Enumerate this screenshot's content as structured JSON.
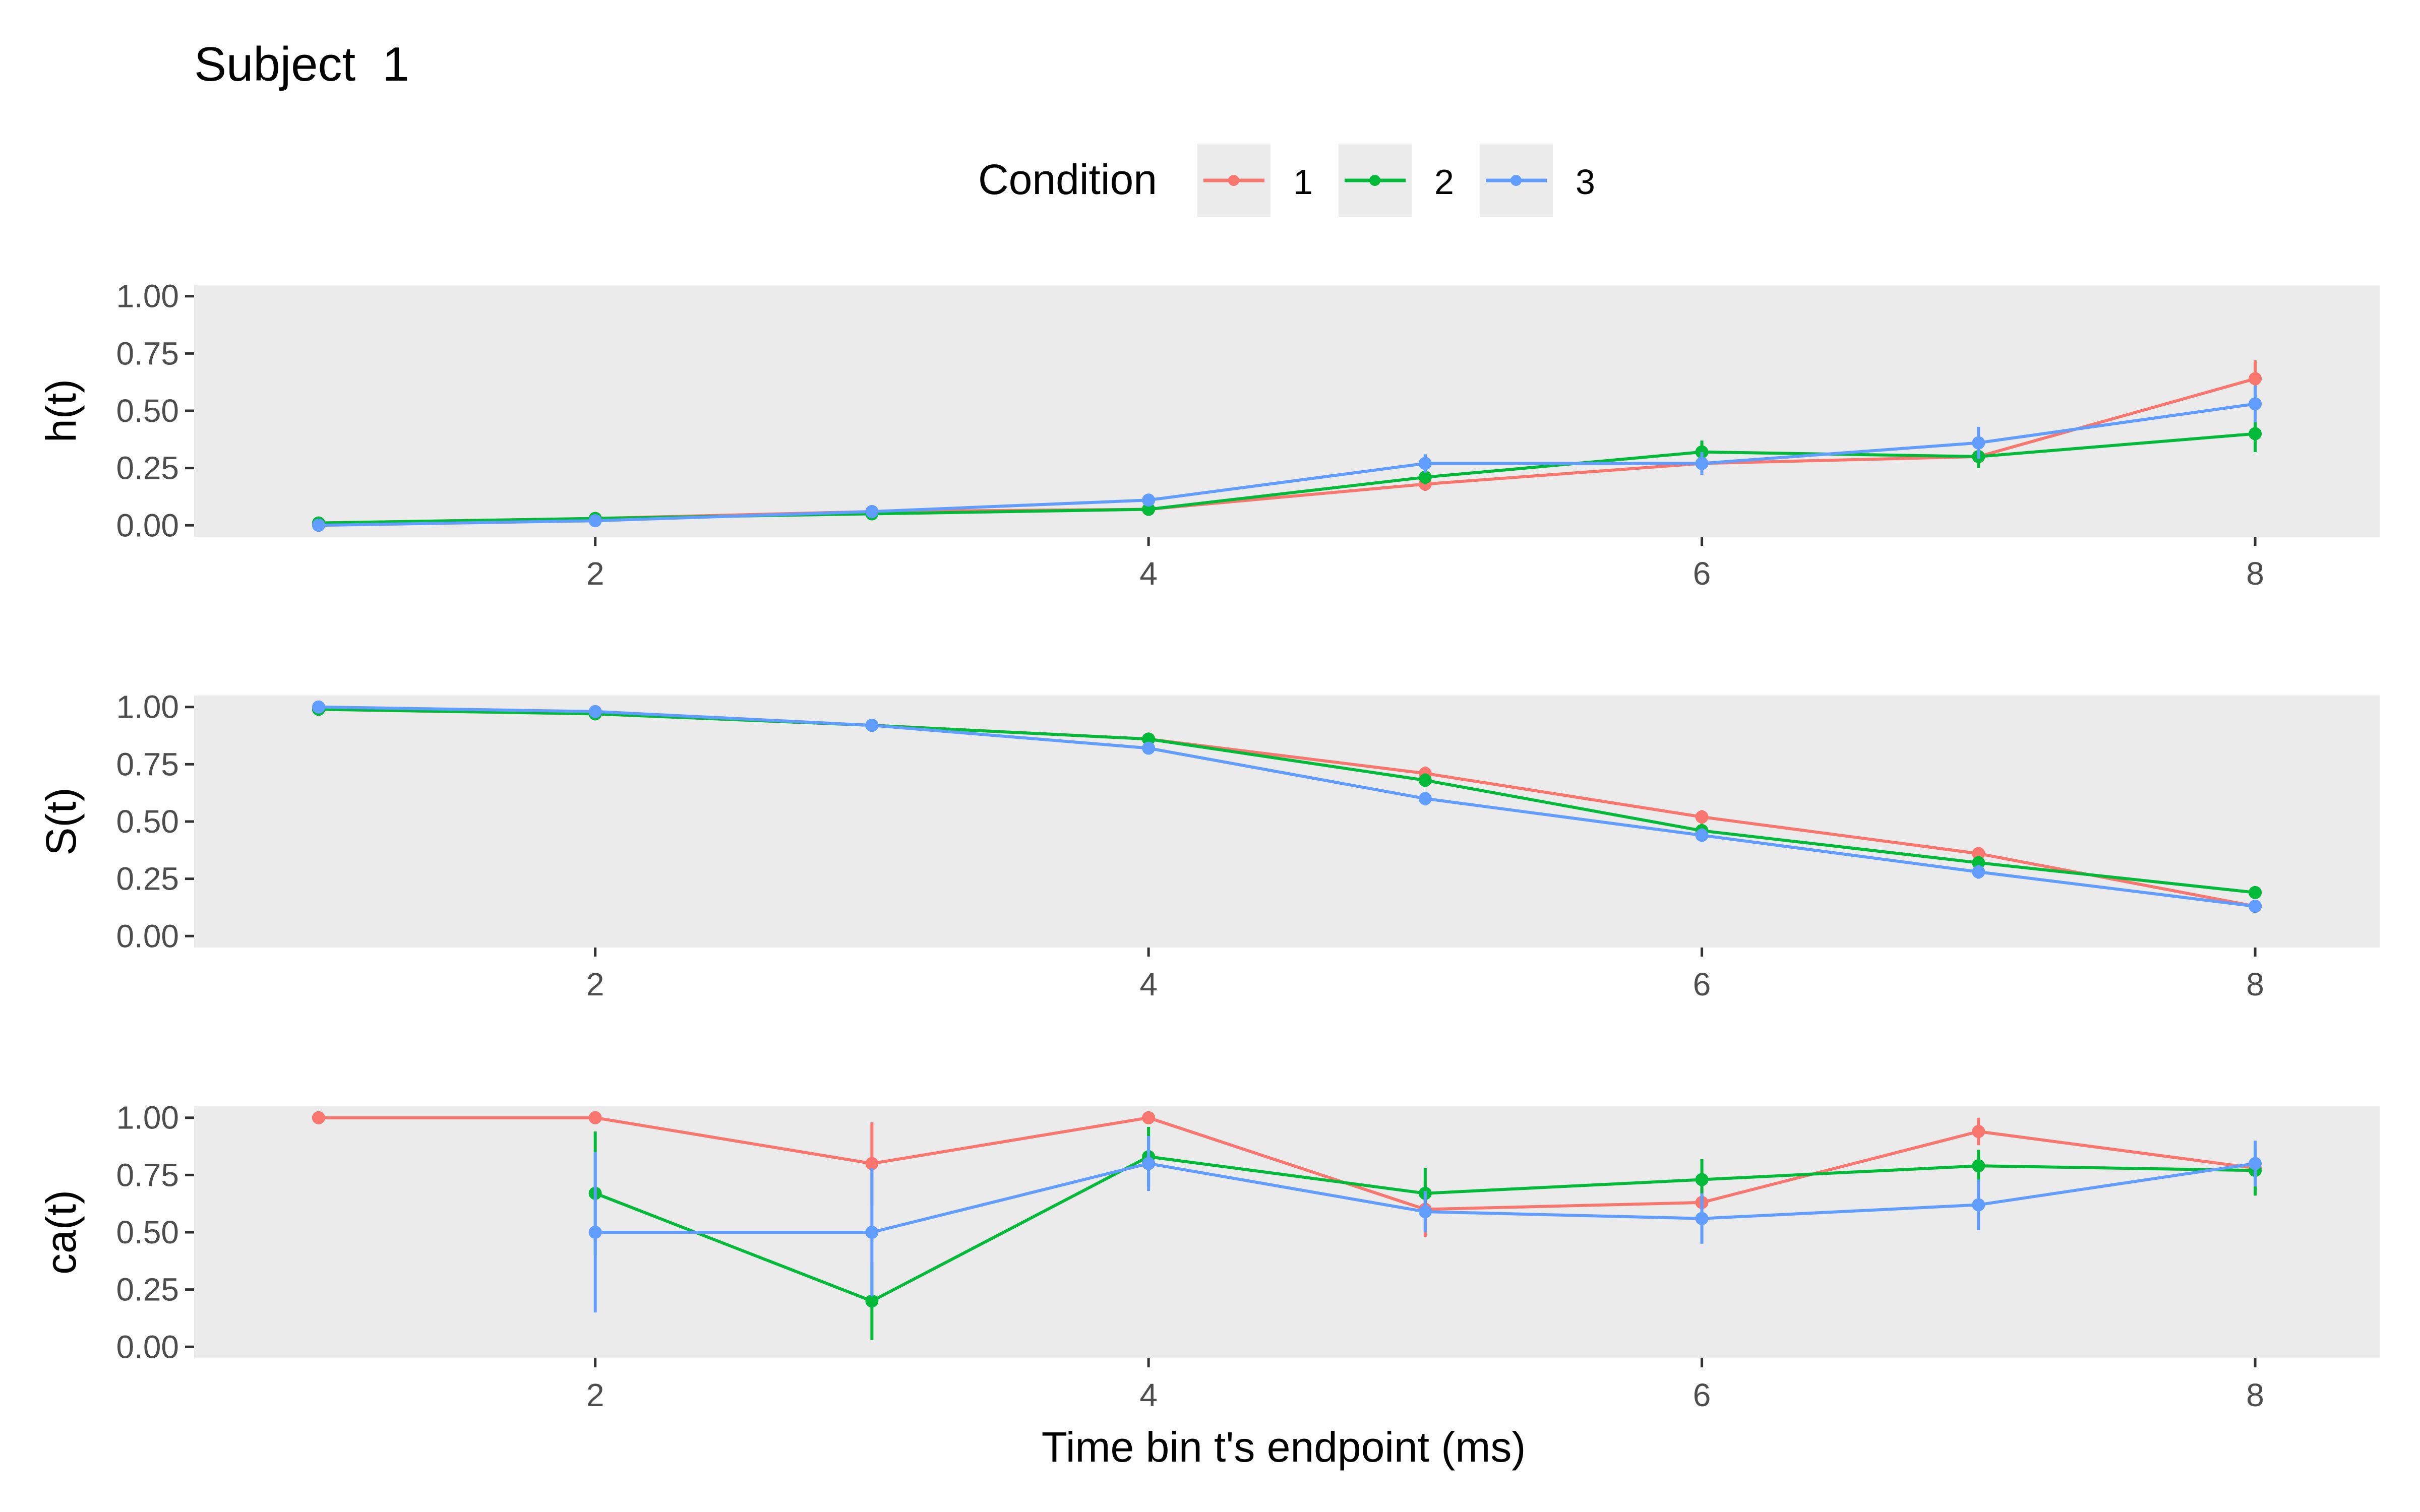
{
  "title": "Subject  1",
  "legend": {
    "title": "Condition",
    "position": "top",
    "items": [
      {
        "label": "1",
        "color": "#F8766D"
      },
      {
        "label": "2",
        "color": "#00BA38"
      },
      {
        "label": "3",
        "color": "#619CFF"
      }
    ]
  },
  "xlabel": "Time bin t's endpoint (ms)",
  "chart_data": [
    {
      "type": "line",
      "ylabel": "h(t)",
      "xlim": [
        0.55,
        8.45
      ],
      "ylim": [
        -0.05,
        1.05
      ],
      "x_ticks": [
        2,
        4,
        6,
        8
      ],
      "y_ticks": [
        "0.00",
        "0.25",
        "0.50",
        "0.75",
        "1.00"
      ],
      "grid": false,
      "series": [
        {
          "name": "1",
          "color": "#F8766D",
          "points": [
            {
              "x": 1,
              "y": 0.01,
              "lo": 0.01,
              "hi": 0.01
            },
            {
              "x": 2,
              "y": 0.03,
              "lo": 0.03,
              "hi": 0.03
            },
            {
              "x": 3,
              "y": 0.06,
              "lo": 0.06,
              "hi": 0.06
            },
            {
              "x": 4,
              "y": 0.07,
              "lo": 0.07,
              "hi": 0.07
            },
            {
              "x": 5,
              "y": 0.18,
              "lo": 0.15,
              "hi": 0.21
            },
            {
              "x": 6,
              "y": 0.27,
              "lo": 0.24,
              "hi": 0.3
            },
            {
              "x": 7,
              "y": 0.3,
              "lo": 0.27,
              "hi": 0.33
            },
            {
              "x": 8,
              "y": 0.64,
              "lo": 0.56,
              "hi": 0.72
            }
          ]
        },
        {
          "name": "2",
          "color": "#00BA38",
          "points": [
            {
              "x": 1,
              "y": 0.01,
              "lo": 0.01,
              "hi": 0.01
            },
            {
              "x": 2,
              "y": 0.03,
              "lo": 0.03,
              "hi": 0.03
            },
            {
              "x": 3,
              "y": 0.05,
              "lo": 0.05,
              "hi": 0.05
            },
            {
              "x": 4,
              "y": 0.07,
              "lo": 0.07,
              "hi": 0.07
            },
            {
              "x": 5,
              "y": 0.21,
              "lo": 0.18,
              "hi": 0.24
            },
            {
              "x": 6,
              "y": 0.32,
              "lo": 0.27,
              "hi": 0.37
            },
            {
              "x": 7,
              "y": 0.3,
              "lo": 0.25,
              "hi": 0.35
            },
            {
              "x": 8,
              "y": 0.4,
              "lo": 0.32,
              "hi": 0.48
            }
          ]
        },
        {
          "name": "3",
          "color": "#619CFF",
          "points": [
            {
              "x": 1,
              "y": 0.0,
              "lo": 0.0,
              "hi": 0.0
            },
            {
              "x": 2,
              "y": 0.02,
              "lo": 0.02,
              "hi": 0.02
            },
            {
              "x": 3,
              "y": 0.06,
              "lo": 0.06,
              "hi": 0.06
            },
            {
              "x": 4,
              "y": 0.11,
              "lo": 0.1,
              "hi": 0.12
            },
            {
              "x": 5,
              "y": 0.27,
              "lo": 0.23,
              "hi": 0.31
            },
            {
              "x": 6,
              "y": 0.27,
              "lo": 0.22,
              "hi": 0.32
            },
            {
              "x": 7,
              "y": 0.36,
              "lo": 0.29,
              "hi": 0.43
            },
            {
              "x": 8,
              "y": 0.53,
              "lo": 0.45,
              "hi": 0.61
            }
          ]
        }
      ]
    },
    {
      "type": "line",
      "ylabel": "S(t)",
      "xlim": [
        0.55,
        8.45
      ],
      "ylim": [
        -0.05,
        1.05
      ],
      "x_ticks": [
        2,
        4,
        6,
        8
      ],
      "y_ticks": [
        "0.00",
        "0.25",
        "0.50",
        "0.75",
        "1.00"
      ],
      "grid": false,
      "series": [
        {
          "name": "1",
          "color": "#F8766D",
          "points": [
            {
              "x": 1,
              "y": 0.99,
              "lo": 0.99,
              "hi": 0.99
            },
            {
              "x": 2,
              "y": 0.97,
              "lo": 0.97,
              "hi": 0.97
            },
            {
              "x": 3,
              "y": 0.92,
              "lo": 0.92,
              "hi": 0.92
            },
            {
              "x": 4,
              "y": 0.86,
              "lo": 0.86,
              "hi": 0.86
            },
            {
              "x": 5,
              "y": 0.71,
              "lo": 0.68,
              "hi": 0.74
            },
            {
              "x": 6,
              "y": 0.52,
              "lo": 0.49,
              "hi": 0.55
            },
            {
              "x": 7,
              "y": 0.36,
              "lo": 0.33,
              "hi": 0.39
            },
            {
              "x": 8,
              "y": 0.13,
              "lo": 0.12,
              "hi": 0.14
            }
          ]
        },
        {
          "name": "2",
          "color": "#00BA38",
          "points": [
            {
              "x": 1,
              "y": 0.99,
              "lo": 0.99,
              "hi": 0.99
            },
            {
              "x": 2,
              "y": 0.97,
              "lo": 0.97,
              "hi": 0.97
            },
            {
              "x": 3,
              "y": 0.92,
              "lo": 0.92,
              "hi": 0.92
            },
            {
              "x": 4,
              "y": 0.86,
              "lo": 0.86,
              "hi": 0.86
            },
            {
              "x": 5,
              "y": 0.68,
              "lo": 0.65,
              "hi": 0.71
            },
            {
              "x": 6,
              "y": 0.46,
              "lo": 0.43,
              "hi": 0.49
            },
            {
              "x": 7,
              "y": 0.32,
              "lo": 0.29,
              "hi": 0.35
            },
            {
              "x": 8,
              "y": 0.19,
              "lo": 0.17,
              "hi": 0.21
            }
          ]
        },
        {
          "name": "3",
          "color": "#619CFF",
          "points": [
            {
              "x": 1,
              "y": 1.0,
              "lo": 1.0,
              "hi": 1.0
            },
            {
              "x": 2,
              "y": 0.98,
              "lo": 0.98,
              "hi": 0.98
            },
            {
              "x": 3,
              "y": 0.92,
              "lo": 0.92,
              "hi": 0.92
            },
            {
              "x": 4,
              "y": 0.82,
              "lo": 0.8,
              "hi": 0.84
            },
            {
              "x": 5,
              "y": 0.6,
              "lo": 0.57,
              "hi": 0.63
            },
            {
              "x": 6,
              "y": 0.44,
              "lo": 0.41,
              "hi": 0.47
            },
            {
              "x": 7,
              "y": 0.28,
              "lo": 0.25,
              "hi": 0.31
            },
            {
              "x": 8,
              "y": 0.13,
              "lo": 0.12,
              "hi": 0.14
            }
          ]
        }
      ]
    },
    {
      "type": "line",
      "ylabel": "ca(t)",
      "xlim": [
        0.55,
        8.45
      ],
      "ylim": [
        -0.05,
        1.05
      ],
      "x_ticks": [
        2,
        4,
        6,
        8
      ],
      "y_ticks": [
        "0.00",
        "0.25",
        "0.50",
        "0.75",
        "1.00"
      ],
      "grid": false,
      "series": [
        {
          "name": "1",
          "color": "#F8766D",
          "points": [
            {
              "x": 1,
              "y": 1.0,
              "lo": 1.0,
              "hi": 1.0
            },
            {
              "x": 2,
              "y": 1.0,
              "lo": 1.0,
              "hi": 1.0
            },
            {
              "x": 3,
              "y": 0.8,
              "lo": 0.62,
              "hi": 0.98
            },
            {
              "x": 4,
              "y": 1.0,
              "lo": 1.0,
              "hi": 1.0
            },
            {
              "x": 5,
              "y": 0.6,
              "lo": 0.48,
              "hi": 0.72
            },
            {
              "x": 6,
              "y": 0.63,
              "lo": 0.55,
              "hi": 0.71
            },
            {
              "x": 7,
              "y": 0.94,
              "lo": 0.88,
              "hi": 1.0
            },
            {
              "x": 8,
              "y": 0.78,
              "lo": 0.7,
              "hi": 0.86
            }
          ]
        },
        {
          "name": "2",
          "color": "#00BA38",
          "points": [
            {
              "x": 2,
              "y": 0.67,
              "lo": 0.4,
              "hi": 0.94
            },
            {
              "x": 3,
              "y": 0.2,
              "lo": 0.03,
              "hi": 0.37
            },
            {
              "x": 4,
              "y": 0.83,
              "lo": 0.7,
              "hi": 0.96
            },
            {
              "x": 5,
              "y": 0.67,
              "lo": 0.56,
              "hi": 0.78
            },
            {
              "x": 6,
              "y": 0.73,
              "lo": 0.64,
              "hi": 0.82
            },
            {
              "x": 7,
              "y": 0.79,
              "lo": 0.72,
              "hi": 0.86
            },
            {
              "x": 8,
              "y": 0.77,
              "lo": 0.66,
              "hi": 0.88
            }
          ]
        },
        {
          "name": "3",
          "color": "#619CFF",
          "points": [
            {
              "x": 2,
              "y": 0.5,
              "lo": 0.15,
              "hi": 0.85
            },
            {
              "x": 3,
              "y": 0.5,
              "lo": 0.22,
              "hi": 0.78
            },
            {
              "x": 4,
              "y": 0.8,
              "lo": 0.68,
              "hi": 0.92
            },
            {
              "x": 5,
              "y": 0.59,
              "lo": 0.5,
              "hi": 0.68
            },
            {
              "x": 6,
              "y": 0.56,
              "lo": 0.45,
              "hi": 0.67
            },
            {
              "x": 7,
              "y": 0.62,
              "lo": 0.51,
              "hi": 0.73
            },
            {
              "x": 8,
              "y": 0.8,
              "lo": 0.7,
              "hi": 0.9
            }
          ]
        }
      ]
    }
  ]
}
